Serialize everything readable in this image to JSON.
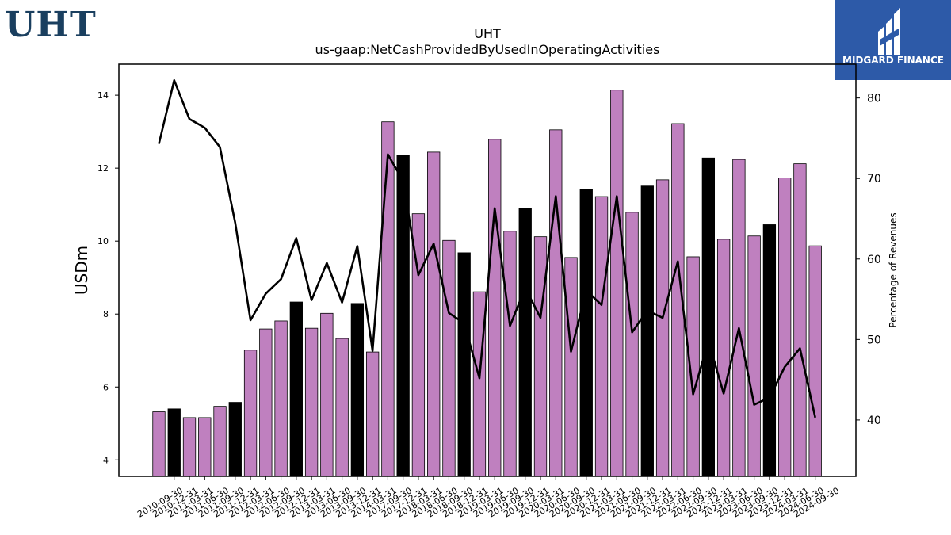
{
  "logo": {
    "ticker": "UHT"
  },
  "brand": {
    "name": "MIDGARD FINANCE",
    "color": "#2d5aa8"
  },
  "chart_data": {
    "type": "bar",
    "title": "UHT",
    "subtitle": "us-gaap:NetCashProvidedByUsedInOperatingActivities",
    "ylabel": "USDm",
    "y2label": "Percentage of Revenues",
    "ylim": [
      3.55,
      14.85
    ],
    "y2lim": [
      33,
      84.2
    ],
    "yticks": [
      4,
      6,
      8,
      10,
      12,
      14
    ],
    "y2ticks": [
      40,
      50,
      60,
      70,
      80
    ],
    "colors": {
      "bar": "#bf80bf",
      "bar_highlight": "#000000",
      "line": "#000000"
    },
    "categories": [
      "2010-09-30",
      "2010-12-31",
      "2011-03-31",
      "2011-06-30",
      "2011-09-30",
      "2011-12-31",
      "2012-03-31",
      "2012-06-30",
      "2012-09-30",
      "2012-12-31",
      "2013-03-31",
      "2013-06-30",
      "2013-09-30",
      "2013-12-31",
      "2014-03-31",
      "2017-09-30",
      "2017-12-31",
      "2018-03-31",
      "2018-06-30",
      "2018-09-30",
      "2018-12-31",
      "2019-03-31",
      "2019-06-30",
      "2019-09-30",
      "2019-12-31",
      "2020-03-31",
      "2020-06-30",
      "2020-09-30",
      "2020-12-31",
      "2021-03-31",
      "2021-06-30",
      "2021-09-30",
      "2021-12-31",
      "2022-03-31",
      "2022-06-30",
      "2022-09-30",
      "2022-12-31",
      "2023-03-31",
      "2023-06-30",
      "2023-09-30",
      "2023-12-31",
      "2024-03-31",
      "2024-06-30",
      "2024-09-30"
    ],
    "series": [
      {
        "type": "bar",
        "values": [
          5.32,
          5.4,
          5.16,
          5.16,
          5.47,
          5.58,
          7.01,
          7.59,
          7.81,
          8.33,
          7.61,
          8.02,
          7.33,
          8.29,
          6.96,
          13.27,
          12.36,
          10.75,
          12.44,
          10.02,
          9.68,
          8.61,
          12.79,
          10.27,
          10.9,
          10.12,
          13.05,
          9.55,
          11.42,
          11.22,
          14.14,
          10.79,
          11.51,
          11.68,
          13.22,
          9.57,
          12.28,
          10.05,
          12.24,
          10.14,
          10.45,
          11.73,
          12.12,
          9.87
        ],
        "highlight": [
          false,
          true,
          false,
          false,
          false,
          true,
          false,
          false,
          false,
          true,
          false,
          false,
          false,
          true,
          false,
          false,
          true,
          false,
          false,
          false,
          true,
          false,
          false,
          false,
          true,
          false,
          false,
          false,
          true,
          false,
          false,
          false,
          true,
          false,
          false,
          false,
          true,
          false,
          false,
          false,
          true,
          false,
          false,
          false
        ]
      },
      {
        "type": "line",
        "axis": "right",
        "values": [
          74.3,
          82.2,
          77.4,
          76.3,
          73.9,
          64.5,
          52.4,
          55.7,
          57.5,
          62.6,
          54.9,
          59.5,
          54.6,
          61.6,
          48.6,
          73.0,
          69.7,
          58.0,
          61.9,
          53.3,
          52.0,
          45.2,
          66.3,
          51.7,
          56.4,
          52.7,
          67.8,
          48.5,
          56.1,
          54.3,
          67.8,
          50.9,
          53.6,
          52.7,
          59.7,
          43.2,
          49.8,
          43.3,
          51.4,
          41.9,
          42.8,
          46.6,
          48.9,
          40.3
        ]
      }
    ]
  }
}
